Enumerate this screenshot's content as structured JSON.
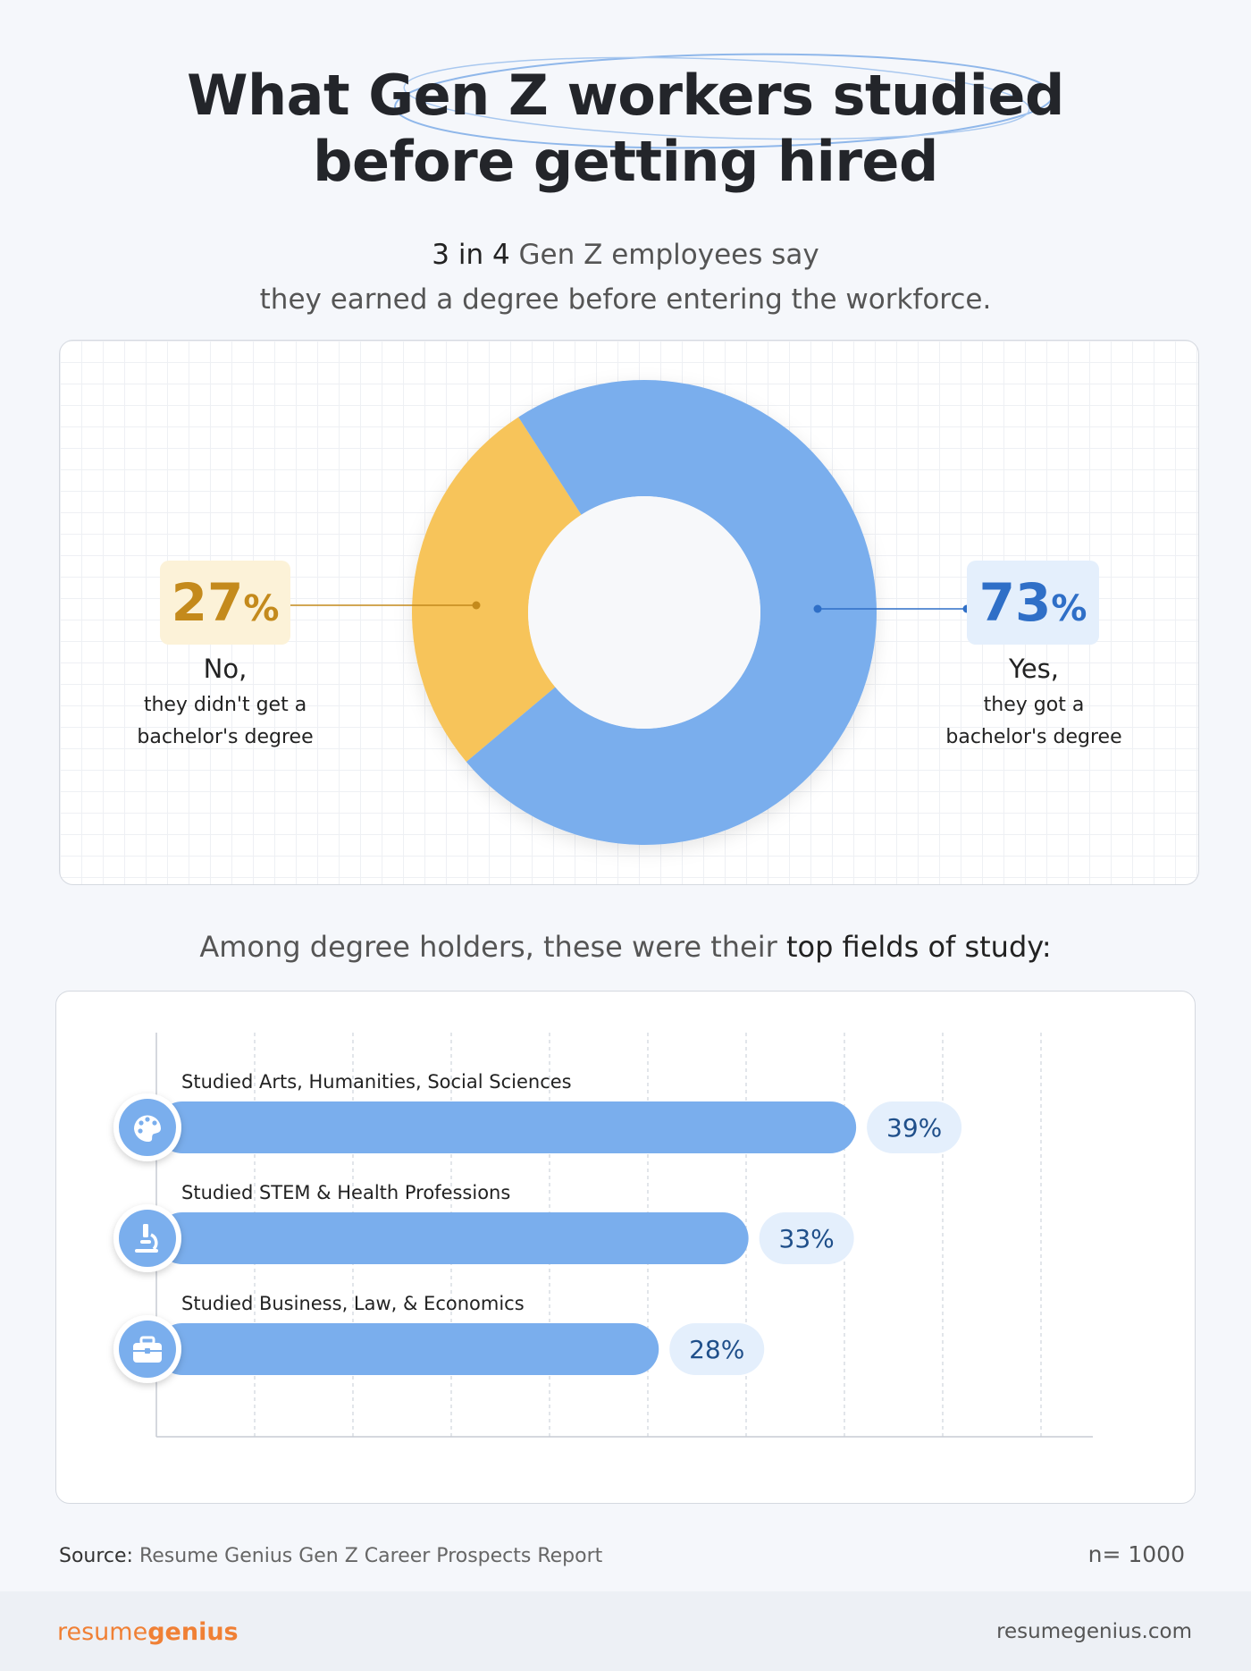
{
  "header": {
    "title_line1": "What Gen Z workers studied",
    "title_line2": "before getting hired",
    "subtitle_bold": "3 in 4",
    "subtitle_rest1": " Gen Z employees say",
    "subtitle_line2": "they earned a degree before entering the workforce."
  },
  "donut": {
    "no_pct": "27",
    "no_pct_symbol": "%",
    "no_label": "No,",
    "no_desc1": "they didn't get a",
    "no_desc2": "bachelor's degree",
    "yes_pct": "73",
    "yes_pct_symbol": "%",
    "yes_label": "Yes,",
    "yes_desc1": "they got a",
    "yes_desc2": "bachelor's degree"
  },
  "section": {
    "intro": "Among degree holders, these were their ",
    "intro_bold": "top fields of study:"
  },
  "footer": {
    "source_label": "Source:",
    "source_text": " Resume Genius Gen Z Career Prospects Report",
    "n_size": "n= 1000",
    "logo_light": "resume",
    "logo_bold": "genius",
    "site": "resumegenius.com"
  },
  "colors": {
    "blue": "#7aaeed",
    "yellow": "#f7c45a",
    "blue_dark": "#2f6fc7",
    "yellow_dark": "#c48a1c"
  },
  "chart_data": [
    {
      "type": "pie",
      "categories": [
        "No, they didn't get a bachelor's degree",
        "Yes, they got a bachelor's degree"
      ],
      "values": [
        27,
        73
      ],
      "colors": [
        "#f7c45a",
        "#7aaeed"
      ]
    },
    {
      "type": "bar",
      "orientation": "horizontal",
      "categories": [
        "Studied Arts, Humanities, Social Sciences",
        "Studied STEM & Health Professions",
        "Studied Business, Law, & Economics"
      ],
      "values": [
        39,
        33,
        28
      ],
      "value_labels": [
        "39%",
        "33%",
        "28%"
      ],
      "icons": [
        "palette-icon",
        "microscope-icon",
        "briefcase-icon"
      ],
      "xlim": [
        0,
        50
      ],
      "grid": true
    }
  ]
}
